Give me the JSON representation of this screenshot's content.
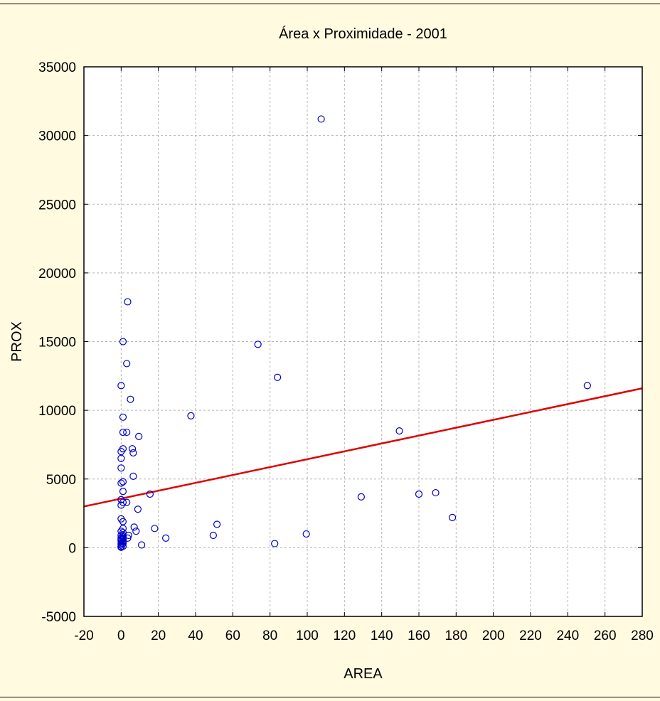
{
  "chart_data": {
    "type": "scatter",
    "title": "Área x Proximidade - 2001",
    "xlabel": "AREA",
    "ylabel": "PROX",
    "xlim": [
      -20,
      280
    ],
    "ylim": [
      -5000,
      35000
    ],
    "xticks": [
      -20,
      0,
      20,
      40,
      60,
      80,
      100,
      120,
      140,
      160,
      180,
      200,
      220,
      240,
      260,
      280
    ],
    "yticks": [
      -5000,
      0,
      5000,
      10000,
      15000,
      20000,
      25000,
      30000,
      35000
    ],
    "grid": true,
    "colors": {
      "points": "#0000cc",
      "fit_line": "#e00000",
      "background": "#fffae0",
      "plot_background": "#ffffff"
    },
    "series": [
      {
        "marker": "circle",
        "x": [
          0,
          0,
          0,
          0,
          0,
          0,
          0,
          0,
          0,
          0,
          0,
          0,
          0,
          0,
          0,
          0,
          0,
          0,
          1,
          1,
          1,
          1,
          1,
          1,
          1,
          1,
          1,
          1,
          1,
          1,
          1,
          1,
          1,
          1,
          1,
          1,
          3.5,
          3,
          3,
          3,
          3.5,
          4,
          5,
          6,
          6.5,
          6.5,
          7,
          8,
          9,
          9.5,
          11,
          15.5,
          18,
          24,
          37.5,
          49.5,
          51.5,
          73.5,
          82.5,
          84,
          99.5,
          107.5,
          129,
          149.5,
          160,
          169,
          178,
          250.5
        ],
        "y": [
          11800,
          7000,
          6500,
          5800,
          4700,
          3500,
          3100,
          2100,
          1200,
          900,
          700,
          500,
          300,
          200,
          100,
          50,
          30,
          600,
          15000,
          9500,
          8400,
          7200,
          4800,
          4100,
          3300,
          1900,
          1400,
          1100,
          900,
          800,
          700,
          600,
          500,
          400,
          300,
          100,
          17900,
          13400,
          8400,
          3300,
          700,
          900,
          10800,
          7200,
          6900,
          5200,
          1500,
          1200,
          2800,
          8100,
          200,
          3900,
          1400,
          700,
          9600,
          900,
          1700,
          14800,
          300,
          12400,
          1000,
          31200,
          3700,
          8500,
          3900,
          4000,
          2200,
          11800
        ]
      }
    ],
    "fit_line": {
      "x": [
        -20,
        280
      ],
      "y": [
        3000,
        11600
      ]
    }
  }
}
